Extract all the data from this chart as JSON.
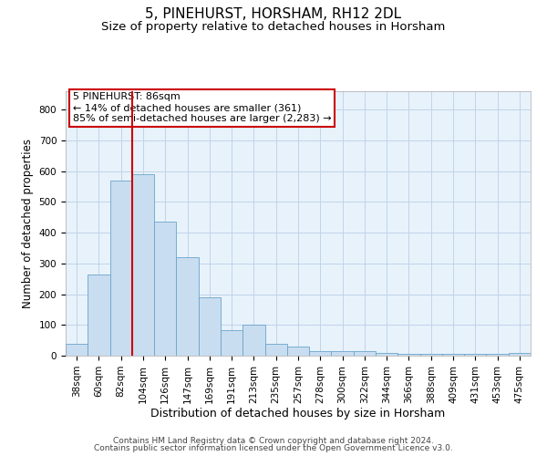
{
  "title": "5, PINEHURST, HORSHAM, RH12 2DL",
  "subtitle": "Size of property relative to detached houses in Horsham",
  "xlabel": "Distribution of detached houses by size in Horsham",
  "ylabel": "Number of detached properties",
  "bar_color": "#c9ddf0",
  "bar_edge_color": "#6aa3cc",
  "grid_color": "#c0d4e8",
  "bg_color": "#e8f2fb",
  "vline_color": "#cc0000",
  "vline_index": 2,
  "annotation_text": "5 PINEHURST: 86sqm\n← 14% of detached houses are smaller (361)\n85% of semi-detached houses are larger (2,283) →",
  "annotation_box_color": "white",
  "annotation_box_edge": "#cc0000",
  "categories": [
    "38sqm",
    "60sqm",
    "82sqm",
    "104sqm",
    "126sqm",
    "147sqm",
    "169sqm",
    "191sqm",
    "213sqm",
    "235sqm",
    "257sqm",
    "278sqm",
    "300sqm",
    "322sqm",
    "344sqm",
    "366sqm",
    "388sqm",
    "409sqm",
    "431sqm",
    "453sqm",
    "475sqm"
  ],
  "values": [
    38,
    265,
    570,
    590,
    435,
    320,
    190,
    83,
    100,
    38,
    30,
    15,
    15,
    15,
    10,
    5,
    5,
    5,
    5,
    5,
    8
  ],
  "ylim": [
    0,
    860
  ],
  "yticks": [
    0,
    100,
    200,
    300,
    400,
    500,
    600,
    700,
    800
  ],
  "footer_line1": "Contains HM Land Registry data © Crown copyright and database right 2024.",
  "footer_line2": "Contains public sector information licensed under the Open Government Licence v3.0.",
  "title_fontsize": 11,
  "subtitle_fontsize": 9.5,
  "tick_fontsize": 7.5,
  "ylabel_fontsize": 8.5,
  "xlabel_fontsize": 9,
  "footer_fontsize": 6.5,
  "annotation_fontsize": 8
}
